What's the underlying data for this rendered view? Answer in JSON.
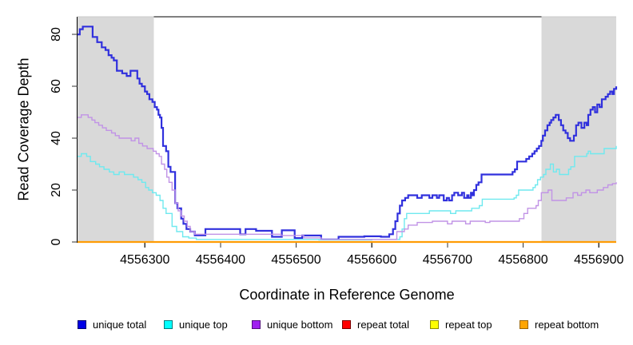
{
  "figure": {
    "background": "#ffffff"
  },
  "chart_data": {
    "type": "line",
    "subtype": "step",
    "title": "",
    "xlabel": "Coordinate in Reference Genome",
    "ylabel": "Read Coverage Depth",
    "xlim": [
      4556211,
      4556923
    ],
    "ylim": [
      0,
      86.8
    ],
    "x_ticks": [
      4556300,
      4556400,
      4556500,
      4556600,
      4556700,
      4556800,
      4556900
    ],
    "y_ticks": [
      0,
      20,
      40,
      60,
      80
    ],
    "grid": false,
    "legend_position": "bottom",
    "shaded_regions": [
      {
        "x0": 4556211,
        "x1": 4556312,
        "color": "#d9d9d9"
      },
      {
        "x0": 4556824,
        "x1": 4556923,
        "color": "#d9d9d9"
      }
    ],
    "top_border_color": "#808080",
    "series": [
      {
        "name": "unique total",
        "color": "#3030dd",
        "swatch": "#0000e6",
        "swatch_border": "#000070",
        "width": 2.2,
        "points": [
          [
            4556211,
            80
          ],
          [
            4556214,
            82
          ],
          [
            4556218,
            83
          ],
          [
            4556231,
            79
          ],
          [
            4556237,
            77
          ],
          [
            4556243,
            75
          ],
          [
            4556248,
            74
          ],
          [
            4556252,
            72
          ],
          [
            4556256,
            71
          ],
          [
            4556259,
            70
          ],
          [
            4556263,
            66
          ],
          [
            4556270,
            65
          ],
          [
            4556276,
            64
          ],
          [
            4556281,
            66
          ],
          [
            4556290,
            63
          ],
          [
            4556293,
            61
          ],
          [
            4556296,
            60
          ],
          [
            4556300,
            58
          ],
          [
            4556303,
            57
          ],
          [
            4556306,
            55
          ],
          [
            4556310,
            54
          ],
          [
            4556313,
            52
          ],
          [
            4556316,
            51
          ],
          [
            4556318,
            49
          ],
          [
            4556320,
            48
          ],
          [
            4556322,
            44
          ],
          [
            4556324,
            37
          ],
          [
            4556328,
            35
          ],
          [
            4556331,
            29
          ],
          [
            4556334,
            27
          ],
          [
            4556340,
            15
          ],
          [
            4556343,
            13
          ],
          [
            4556348,
            9
          ],
          [
            4556351,
            7
          ],
          [
            4556355,
            5
          ],
          [
            4556360,
            4
          ],
          [
            4556366,
            2.6
          ],
          [
            4556380,
            5
          ],
          [
            4556426,
            3
          ],
          [
            4556433,
            5
          ],
          [
            4556447,
            4.3
          ],
          [
            4556468,
            2
          ],
          [
            4556481,
            4.5
          ],
          [
            4556498,
            1.5
          ],
          [
            4556508,
            2.5
          ],
          [
            4556533,
            1
          ],
          [
            4556556,
            2
          ],
          [
            4556590,
            2.2
          ],
          [
            4556612,
            2
          ],
          [
            4556623,
            3
          ],
          [
            4556628,
            5
          ],
          [
            4556631,
            8
          ],
          [
            4556634,
            11
          ],
          [
            4556637,
            14
          ],
          [
            4556640,
            16
          ],
          [
            4556644,
            17
          ],
          [
            4556648,
            18
          ],
          [
            4556660,
            17
          ],
          [
            4556666,
            18
          ],
          [
            4556676,
            17
          ],
          [
            4556680,
            18
          ],
          [
            4556686,
            17
          ],
          [
            4556689,
            18
          ],
          [
            4556695,
            16
          ],
          [
            4556699,
            17
          ],
          [
            4556702,
            16
          ],
          [
            4556706,
            18
          ],
          [
            4556709,
            19
          ],
          [
            4556714,
            18
          ],
          [
            4556719,
            19
          ],
          [
            4556722,
            17
          ],
          [
            4556726,
            18
          ],
          [
            4556728,
            17
          ],
          [
            4556731,
            19
          ],
          [
            4556733,
            18
          ],
          [
            4556735,
            20
          ],
          [
            4556738,
            22
          ],
          [
            4556741,
            23
          ],
          [
            4556745,
            26
          ],
          [
            4556786,
            27
          ],
          [
            4556789,
            28
          ],
          [
            4556792,
            31
          ],
          [
            4556804,
            32
          ],
          [
            4556808,
            33
          ],
          [
            4556812,
            34
          ],
          [
            4556815,
            35
          ],
          [
            4556818,
            36
          ],
          [
            4556821,
            37
          ],
          [
            4556824,
            39
          ],
          [
            4556826,
            41
          ],
          [
            4556829,
            43
          ],
          [
            4556832,
            45
          ],
          [
            4556835,
            46
          ],
          [
            4556837,
            47
          ],
          [
            4556840,
            48
          ],
          [
            4556843,
            49
          ],
          [
            4556847,
            47
          ],
          [
            4556850,
            45
          ],
          [
            4556853,
            43
          ],
          [
            4556856,
            42
          ],
          [
            4556859,
            40
          ],
          [
            4556862,
            39
          ],
          [
            4556867,
            41
          ],
          [
            4556870,
            45
          ],
          [
            4556873,
            46
          ],
          [
            4556877,
            44
          ],
          [
            4556881,
            46
          ],
          [
            4556884,
            45
          ],
          [
            4556886,
            49
          ],
          [
            4556889,
            51
          ],
          [
            4556892,
            52
          ],
          [
            4556895,
            50
          ],
          [
            4556898,
            53
          ],
          [
            4556901,
            52
          ],
          [
            4556904,
            55
          ],
          [
            4556909,
            56
          ],
          [
            4556912,
            57
          ],
          [
            4556915,
            58
          ],
          [
            4556918,
            57
          ],
          [
            4556920,
            59
          ],
          [
            4556923,
            60
          ]
        ]
      },
      {
        "name": "unique top",
        "color": "#6fe9ef",
        "swatch": "#00ffff",
        "swatch_border": "#007d7d",
        "width": 1.4,
        "points": [
          [
            4556211,
            33
          ],
          [
            4556216,
            34
          ],
          [
            4556223,
            33
          ],
          [
            4556228,
            31
          ],
          [
            4556235,
            30
          ],
          [
            4556240,
            29
          ],
          [
            4556246,
            28
          ],
          [
            4556253,
            27
          ],
          [
            4556259,
            26
          ],
          [
            4556266,
            27
          ],
          [
            4556273,
            26
          ],
          [
            4556285,
            25
          ],
          [
            4556291,
            24
          ],
          [
            4556296,
            23
          ],
          [
            4556301,
            21
          ],
          [
            4556305,
            20
          ],
          [
            4556310,
            19
          ],
          [
            4556315,
            18
          ],
          [
            4556320,
            16
          ],
          [
            4556324,
            13
          ],
          [
            4556328,
            11
          ],
          [
            4556336,
            6
          ],
          [
            4556342,
            4
          ],
          [
            4556350,
            2
          ],
          [
            4556358,
            1.5
          ],
          [
            4556368,
            1
          ],
          [
            4556450,
            1
          ],
          [
            4556530,
            0.8
          ],
          [
            4556600,
            1
          ],
          [
            4556637,
            2
          ],
          [
            4556640,
            5
          ],
          [
            4556643,
            9
          ],
          [
            4556646,
            11
          ],
          [
            4556676,
            12
          ],
          [
            4556704,
            11
          ],
          [
            4556711,
            12
          ],
          [
            4556732,
            13
          ],
          [
            4556742,
            14
          ],
          [
            4556746,
            16.5
          ],
          [
            4556788,
            17
          ],
          [
            4556791,
            18
          ],
          [
            4556794,
            20
          ],
          [
            4556813,
            21
          ],
          [
            4556816,
            22
          ],
          [
            4556819,
            24
          ],
          [
            4556823,
            25
          ],
          [
            4556827,
            26
          ],
          [
            4556830,
            28
          ],
          [
            4556836,
            30
          ],
          [
            4556840,
            27
          ],
          [
            4556844,
            28
          ],
          [
            4556848,
            26
          ],
          [
            4556857,
            26
          ],
          [
            4556860,
            28
          ],
          [
            4556863,
            29
          ],
          [
            4556868,
            33
          ],
          [
            4556879,
            33
          ],
          [
            4556884,
            34
          ],
          [
            4556886,
            35
          ],
          [
            4556889,
            34
          ],
          [
            4556899,
            34
          ],
          [
            4556907,
            36
          ],
          [
            4556915,
            36
          ],
          [
            4556923,
            37
          ]
        ]
      },
      {
        "name": "unique bottom",
        "color": "#c193e6",
        "swatch": "#a020f0",
        "swatch_border": "#55107f",
        "width": 1.4,
        "points": [
          [
            4556211,
            48
          ],
          [
            4556216,
            49
          ],
          [
            4556225,
            48
          ],
          [
            4556230,
            47
          ],
          [
            4556234,
            46
          ],
          [
            4556239,
            45
          ],
          [
            4556244,
            44
          ],
          [
            4556249,
            43
          ],
          [
            4556256,
            42
          ],
          [
            4556261,
            41
          ],
          [
            4556266,
            40
          ],
          [
            4556282,
            39
          ],
          [
            4556287,
            40
          ],
          [
            4556292,
            38
          ],
          [
            4556297,
            37
          ],
          [
            4556303,
            36
          ],
          [
            4556311,
            35
          ],
          [
            4556315,
            34
          ],
          [
            4556319,
            33
          ],
          [
            4556322,
            30
          ],
          [
            4556326,
            28
          ],
          [
            4556329,
            25
          ],
          [
            4556332,
            23
          ],
          [
            4556336,
            20
          ],
          [
            4556340,
            15
          ],
          [
            4556344,
            12
          ],
          [
            4556348,
            10
          ],
          [
            4556352,
            8
          ],
          [
            4556356,
            6
          ],
          [
            4556360,
            4
          ],
          [
            4556366,
            3
          ],
          [
            4556450,
            3
          ],
          [
            4556480,
            2.5
          ],
          [
            4556510,
            1.6
          ],
          [
            4556533,
            1
          ],
          [
            4556630,
            1
          ],
          [
            4556633,
            4
          ],
          [
            4556643,
            5
          ],
          [
            4556648,
            6.5
          ],
          [
            4556660,
            7.5
          ],
          [
            4556680,
            8
          ],
          [
            4556700,
            7
          ],
          [
            4556706,
            8
          ],
          [
            4556724,
            7
          ],
          [
            4556730,
            8
          ],
          [
            4556750,
            7.5
          ],
          [
            4556756,
            8
          ],
          [
            4556795,
            9
          ],
          [
            4556801,
            11
          ],
          [
            4556806,
            13
          ],
          [
            4556817,
            14
          ],
          [
            4556820,
            16
          ],
          [
            4556824,
            19
          ],
          [
            4556833,
            20
          ],
          [
            4556838,
            16
          ],
          [
            4556853,
            16
          ],
          [
            4556857,
            17
          ],
          [
            4556866,
            19
          ],
          [
            4556872,
            18
          ],
          [
            4556877,
            19
          ],
          [
            4556883,
            20
          ],
          [
            4556888,
            19
          ],
          [
            4556898,
            20
          ],
          [
            4556906,
            21
          ],
          [
            4556912,
            22
          ],
          [
            4556918,
            22.5
          ],
          [
            4556923,
            23
          ]
        ]
      },
      {
        "name": "repeat total",
        "color": "#e8000d",
        "swatch": "#ff0000",
        "swatch_border": "#7a0000",
        "width": 2,
        "points": [
          [
            4556211,
            0
          ],
          [
            4556923,
            0
          ]
        ]
      },
      {
        "name": "repeat top",
        "color": "#ffff00",
        "swatch": "#ffff00",
        "swatch_border": "#8f8f00",
        "width": 2,
        "points": [
          [
            4556211,
            0
          ],
          [
            4556923,
            0
          ]
        ]
      },
      {
        "name": "repeat bottom",
        "color": "#ff9c05",
        "swatch": "#ffa500",
        "swatch_border": "#9c6500",
        "width": 2.2,
        "points": [
          [
            4556211,
            0
          ],
          [
            4556923,
            0
          ]
        ]
      }
    ]
  }
}
